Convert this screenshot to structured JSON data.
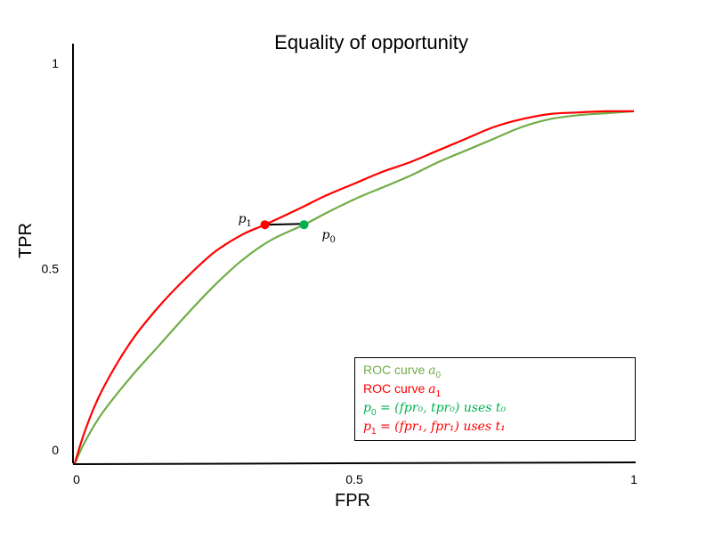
{
  "chart_data": {
    "type": "line",
    "title": "Equality of opportunity",
    "xlabel": "FPR",
    "ylabel": "TPR",
    "xlim": [
      0,
      1
    ],
    "ylim": [
      0,
      1
    ],
    "x_ticks": [
      {
        "value": 0,
        "label": "0"
      },
      {
        "value": 0.5,
        "label": "0.5"
      },
      {
        "value": 1,
        "label": "1"
      }
    ],
    "y_ticks": [
      {
        "value": 0,
        "label": "0"
      },
      {
        "value": 0.5,
        "label": "0.5"
      },
      {
        "value": 1,
        "label": "1"
      }
    ],
    "grid": false,
    "legend_position": "bottom-right",
    "series": [
      {
        "key": "a0",
        "color": "#70ad47",
        "x": [
          0,
          0.02,
          0.05,
          0.1,
          0.15,
          0.2,
          0.25,
          0.3,
          0.35,
          0.41,
          0.45,
          0.5,
          0.55,
          0.6,
          0.65,
          0.7,
          0.75,
          0.8,
          0.85,
          0.9,
          0.95,
          1.0
        ],
        "y": [
          0,
          0.06,
          0.13,
          0.22,
          0.3,
          0.38,
          0.455,
          0.52,
          0.57,
          0.61,
          0.64,
          0.675,
          0.705,
          0.735,
          0.77,
          0.8,
          0.83,
          0.86,
          0.88,
          0.89,
          0.895,
          0.9
        ]
      },
      {
        "key": "a1",
        "color": "#ff0000",
        "x": [
          0,
          0.02,
          0.05,
          0.1,
          0.15,
          0.2,
          0.25,
          0.3,
          0.34,
          0.4,
          0.45,
          0.5,
          0.55,
          0.6,
          0.65,
          0.7,
          0.75,
          0.8,
          0.85,
          0.9,
          0.95,
          1.0
        ],
        "y": [
          0,
          0.09,
          0.19,
          0.31,
          0.4,
          0.475,
          0.54,
          0.585,
          0.61,
          0.65,
          0.685,
          0.715,
          0.745,
          0.77,
          0.8,
          0.83,
          0.86,
          0.88,
          0.893,
          0.897,
          0.9,
          0.9
        ]
      }
    ],
    "points": [
      {
        "key": "p1",
        "label": "p",
        "sub": "1",
        "x": 0.34,
        "y": 0.61,
        "color": "#ff0000"
      },
      {
        "key": "p0",
        "label": "p",
        "sub": "0",
        "x": 0.41,
        "y": 0.61,
        "color": "#00b050"
      }
    ],
    "connector": {
      "from": "p1",
      "to": "p0",
      "color": "#000000"
    },
    "legend": [
      {
        "key": "a0",
        "text": "ROC curve ",
        "math": "a",
        "sub": "0",
        "tail": "",
        "color": "#70ad47"
      },
      {
        "key": "a1",
        "text": "ROC curve ",
        "math": "a",
        "sub": "1",
        "tail": "",
        "color": "#ff0000"
      },
      {
        "key": "p0",
        "text": "",
        "math": "p",
        "sub": "0",
        "tail_math": " = (fpr₀, tpr₀) uses t₀",
        "color": "#00b050"
      },
      {
        "key": "p1",
        "text": "",
        "math": "p",
        "sub": "1",
        "tail_math": " = (fpr₁, fpr₁)  uses t₁",
        "color": "#ff0000"
      }
    ]
  }
}
